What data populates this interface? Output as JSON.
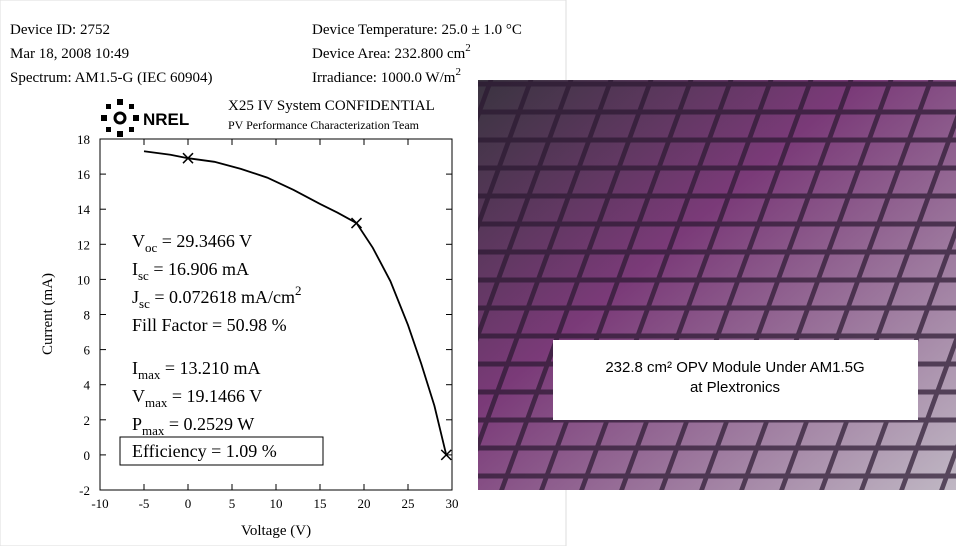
{
  "header": {
    "left": [
      "Device ID: 2752",
      "Mar 18, 2008 10:49",
      "Spectrum: AM1.5-G (IEC 60904)"
    ],
    "right": [
      {
        "text": "Device Temperature: 25.0 ± 1.0 °C"
      },
      {
        "text": "Device Area: 232.800 cm",
        "sup": "2"
      },
      {
        "text": "Irradiance: 1000.0 W/m",
        "sup": "2"
      }
    ],
    "logo": "NREL",
    "system": "X25 IV System  CONFIDENTIAL",
    "team": "PV Performance Characterization Team"
  },
  "chart_data": {
    "type": "line",
    "x_label": "Voltage (V)",
    "y_label": "Current (mA)",
    "x": [
      -5,
      -2,
      0,
      3,
      6,
      9,
      12,
      15,
      17,
      19.1466,
      21,
      23,
      25,
      26.5,
      28,
      29.3466
    ],
    "series": [
      {
        "color": "#000000",
        "values": [
          17.3,
          17.1,
          16.906,
          16.7,
          16.3,
          15.8,
          15.1,
          14.3,
          13.8,
          13.21,
          11.8,
          9.9,
          7.4,
          5.2,
          2.8,
          0
        ]
      }
    ],
    "markers": [
      {
        "x": 0,
        "y": 16.906
      },
      {
        "x": 19.1466,
        "y": 13.21
      },
      {
        "x": 29.3466,
        "y": 0
      }
    ],
    "xlim": [
      -10,
      30
    ],
    "ylim": [
      -2,
      18
    ],
    "xticks": [
      -10,
      -5,
      0,
      5,
      10,
      15,
      20,
      25,
      30
    ],
    "yticks": [
      -2,
      0,
      2,
      4,
      6,
      8,
      10,
      12,
      14,
      16,
      18
    ],
    "annotations": [
      {
        "main": "V",
        "sub": "oc",
        "rest": " = 29.3466 V"
      },
      {
        "main": "I",
        "sub": "sc",
        "rest": " = 16.906 mA"
      },
      {
        "main": "J",
        "sub": "sc",
        "rest": " = 0.072618 mA/cm",
        "sup": "2"
      },
      {
        "main": "Fill Factor = 50.98 %"
      },
      {
        "main": "I",
        "sub": "max",
        "rest": " = 13.210 mA"
      },
      {
        "main": "V",
        "sub": "max",
        "rest": " = 19.1466 V"
      },
      {
        "main": "P",
        "sub": "max",
        "rest": " = 0.2529 W"
      },
      {
        "main": "Efficiency = 1.09 %"
      }
    ]
  },
  "photo": {
    "caption": [
      "232.8 cm² OPV Module Under AM1.5G",
      "at Plextronics"
    ]
  }
}
